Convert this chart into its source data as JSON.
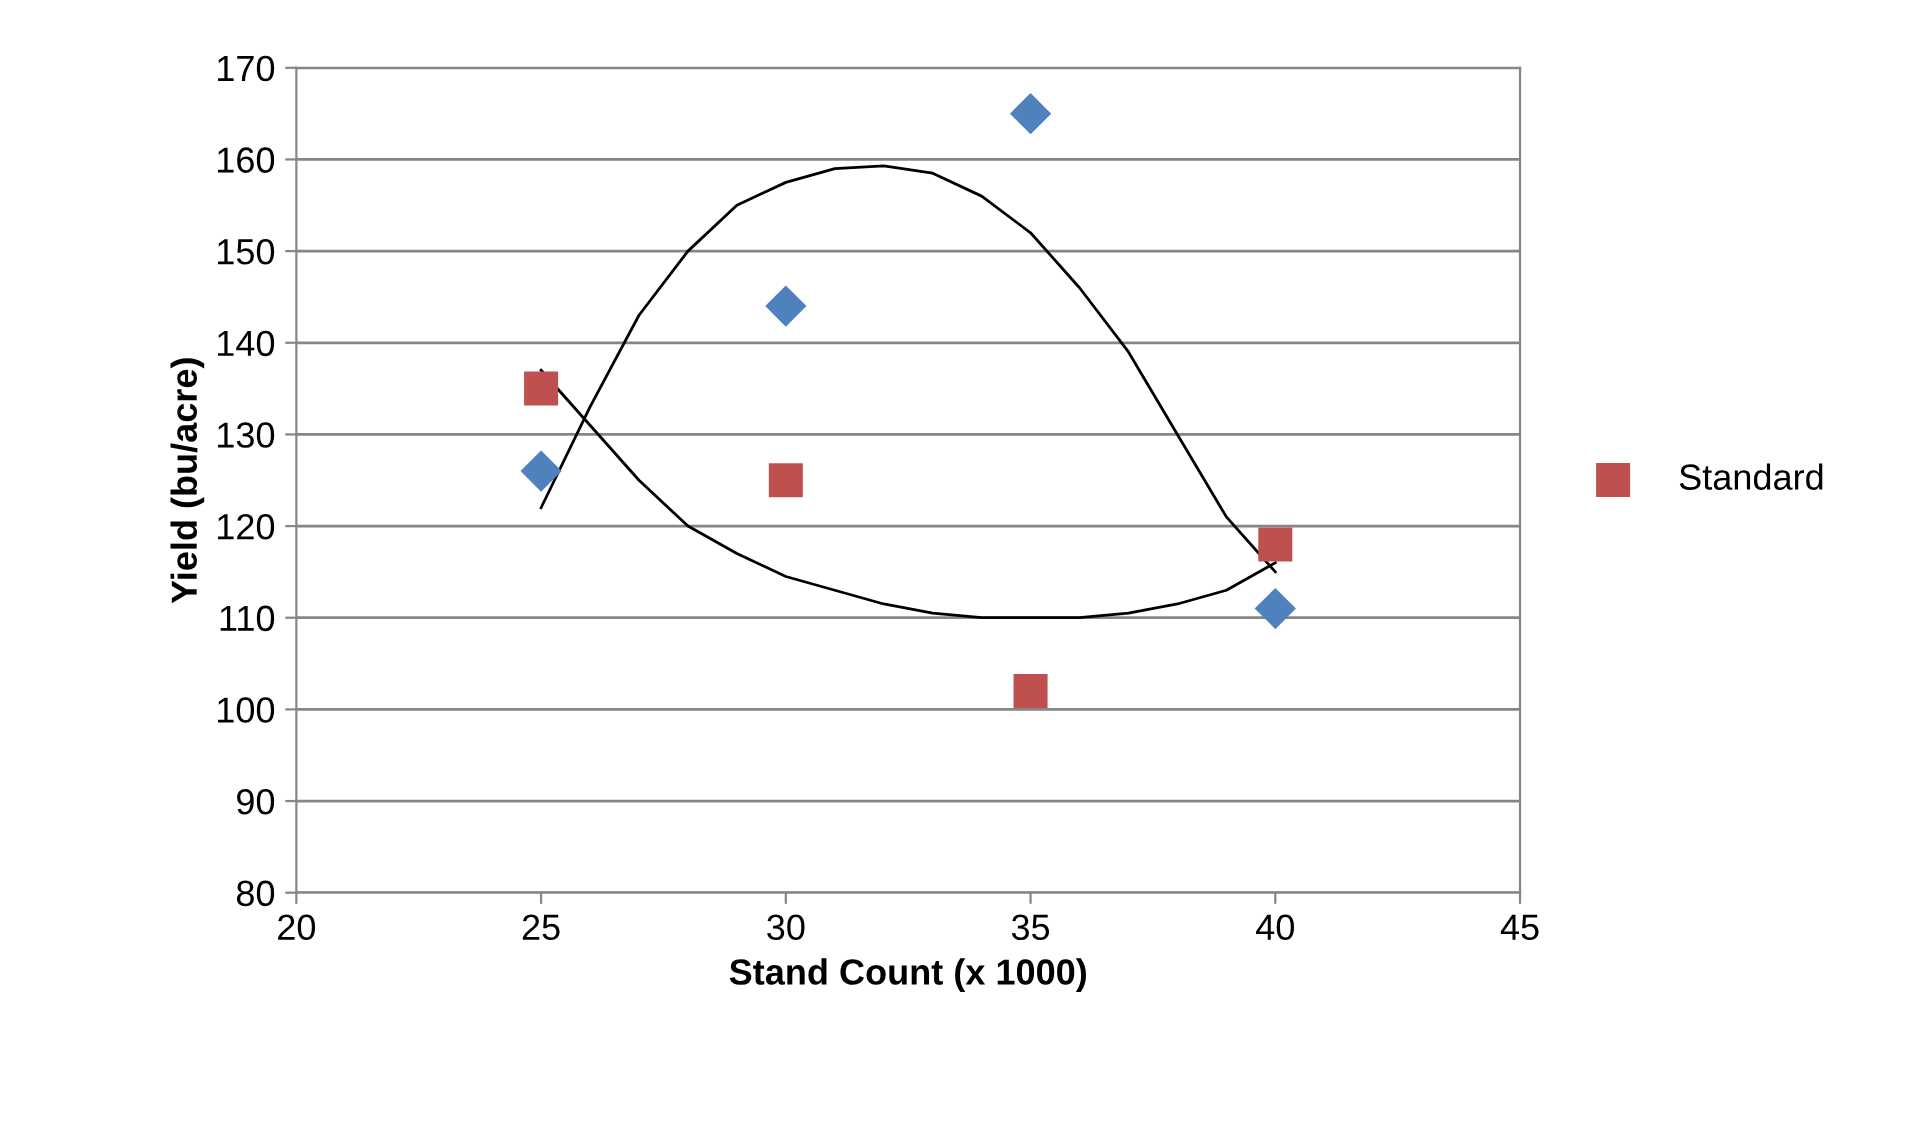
{
  "chart_data": {
    "type": "scatter",
    "xlabel": "Stand Count (x 1000)",
    "ylabel": "Yield (bu/acre)",
    "xlim": [
      20,
      45
    ],
    "xticks": [
      20,
      25,
      30,
      35,
      40,
      45
    ],
    "ylim": [
      80,
      170
    ],
    "yticks": [
      80,
      90,
      100,
      110,
      120,
      130,
      140,
      150,
      160,
      170
    ],
    "grid": "y",
    "legend": "right",
    "series": [
      {
        "color": "#4f81bd",
        "marker": "diamond",
        "x": [
          25,
          30,
          35,
          40
        ],
        "values": [
          126,
          144,
          165,
          111
        ]
      },
      {
        "name": "Standard",
        "color": "#c0504d",
        "marker": "square",
        "x": [
          25,
          30,
          35,
          40
        ],
        "values": [
          135,
          125,
          102,
          118
        ]
      },
      {
        "type": "line",
        "color": "#000000",
        "x": [
          25,
          26,
          27,
          28,
          29,
          30,
          31,
          32,
          33,
          34,
          35,
          36,
          37,
          38,
          39,
          40
        ],
        "values": [
          122,
          133,
          143,
          150,
          155,
          157.5,
          159,
          159.3,
          158.5,
          156,
          152,
          146,
          139,
          130,
          121,
          115
        ]
      },
      {
        "type": "line",
        "color": "#000000",
        "x": [
          25,
          26,
          27,
          28,
          29,
          30,
          31,
          32,
          33,
          34,
          35,
          36,
          37,
          38,
          39,
          40
        ],
        "values": [
          137,
          131,
          125,
          120,
          117,
          114.5,
          113,
          111.5,
          110.5,
          110,
          110,
          110,
          110.5,
          111.5,
          113,
          116
        ]
      }
    ]
  }
}
